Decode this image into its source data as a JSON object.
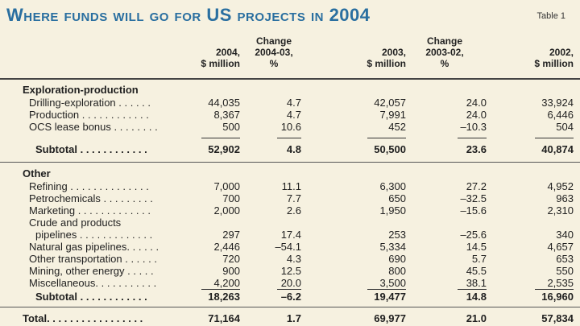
{
  "title": "Where funds will go for US projects in 2004",
  "table_label": "Table 1",
  "headers": [
    [
      "2004,",
      "$ million"
    ],
    [
      "Change",
      "2004-03,",
      "%"
    ],
    [
      "2003,",
      "$ million"
    ],
    [
      "Change",
      "2003-02,",
      "%"
    ],
    [
      "2002,",
      "$ million"
    ]
  ],
  "sections": [
    {
      "name": "Exploration-production",
      "rows": [
        {
          "label": "Drilling-exploration . . . . . .",
          "values": [
            "44,035",
            "4.7",
            "42,057",
            "24.0",
            "33,924"
          ]
        },
        {
          "label": "Production . . . . . . . . . . . .",
          "values": [
            "8,367",
            "4.7",
            "7,991",
            "24.0",
            "6,446"
          ]
        },
        {
          "label": "OCS lease bonus . . . . . . . .",
          "values": [
            "500",
            "10.6",
            "452",
            "–10.3",
            "504"
          ]
        }
      ],
      "subtotal": {
        "label": "Subtotal . . . . . . . . . . . .",
        "values": [
          "52,902",
          "4.8",
          "50,500",
          "23.6",
          "40,874"
        ]
      }
    },
    {
      "name": "Other",
      "rows": [
        {
          "label": "Refining . . . . . . . . . . . . . .",
          "values": [
            "7,000",
            "11.1",
            "6,300",
            "27.2",
            "4,952"
          ]
        },
        {
          "label": "Petrochemicals . . . . . . . . .",
          "values": [
            "700",
            "7.7",
            "650",
            "–32.5",
            "963"
          ]
        },
        {
          "label": "Marketing . . . . . . . . . . . . .",
          "values": [
            "2,000",
            "2.6",
            "1,950",
            "–15.6",
            "2,310"
          ]
        },
        {
          "label": "Crude and products",
          "values": [
            "",
            "",
            "",
            "",
            ""
          ]
        },
        {
          "label": "pipelines . . . . . . . . . . . . .",
          "values": [
            "297",
            "17.4",
            "253",
            "–25.6",
            "340"
          ]
        },
        {
          "label": "Natural gas pipelines. . . . . .",
          "values": [
            "2,446",
            "–54.1",
            "5,334",
            "14.5",
            "4,657"
          ]
        },
        {
          "label": "Other transportation . . . . . .",
          "values": [
            "720",
            "4.3",
            "690",
            "5.7",
            "653"
          ]
        },
        {
          "label": "Mining, other energy . . . . .",
          "values": [
            "900",
            "12.5",
            "800",
            "45.5",
            "550"
          ]
        },
        {
          "label": "Miscellaneous. . . . . . . . . . .",
          "values": [
            "4,200",
            "20.0",
            "3,500",
            "38.1",
            "2,535"
          ]
        }
      ],
      "subtotal": {
        "label": "Subtotal . . . . . . . . . . . .",
        "values": [
          "18,263",
          "–6.2",
          "19,477",
          "14.8",
          "16,960"
        ]
      }
    }
  ],
  "total": {
    "label": "Total. . . . . . . . . . . . . . . . .",
    "values": [
      "71,164",
      "1.7",
      "69,977",
      "21.0",
      "57,834"
    ]
  }
}
